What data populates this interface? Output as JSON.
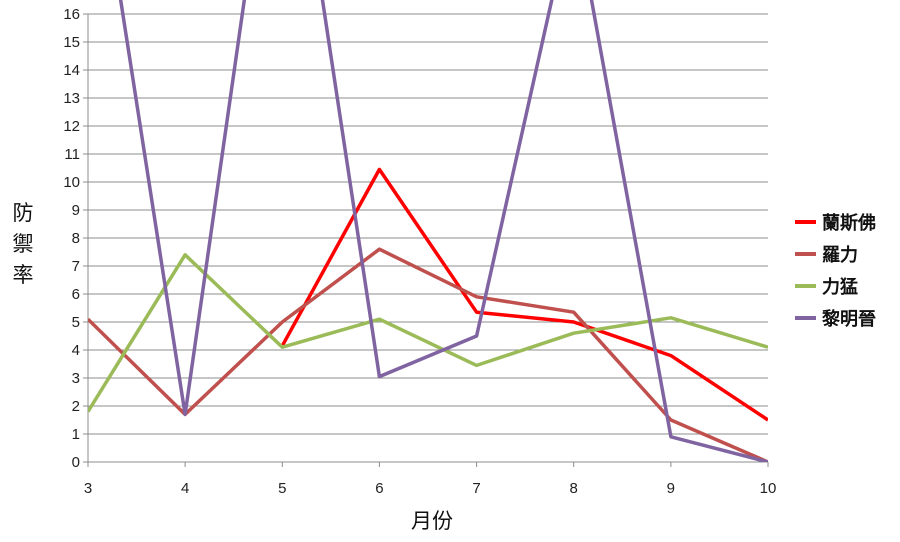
{
  "chart_data": {
    "type": "line",
    "xlabel": "月份",
    "ylabel": "防禦率",
    "x": [
      3,
      4,
      5,
      6,
      7,
      8,
      9,
      10
    ],
    "xlim": [
      3,
      10
    ],
    "ylim": [
      0,
      16
    ],
    "x_ticks": [
      "3",
      "4",
      "5",
      "6",
      "7",
      "8",
      "9",
      "10"
    ],
    "y_ticks": [
      "0",
      "1",
      "2",
      "3",
      "4",
      "5",
      "6",
      "7",
      "8",
      "9",
      "10",
      "11",
      "12",
      "13",
      "14",
      "15",
      "16"
    ],
    "grid": "horizontal",
    "legend_position": "right",
    "series": [
      {
        "name": "蘭斯佛",
        "color": "#ff0000",
        "values": [
          null,
          null,
          4.15,
          10.45,
          5.35,
          5.0,
          3.8,
          1.5
        ]
      },
      {
        "name": "羅力",
        "color": "#c0504d",
        "values": [
          5.1,
          1.7,
          5.0,
          7.6,
          5.9,
          5.35,
          1.5,
          0.0
        ]
      },
      {
        "name": "力猛",
        "color": "#9bbb59",
        "values": [
          1.8,
          7.4,
          4.1,
          5.1,
          3.45,
          4.6,
          5.15,
          4.1
        ]
      },
      {
        "name": "黎明晉",
        "color": "#8064a2",
        "values": [
          24.0,
          1.7,
          26.0,
          3.05,
          4.5,
          20.0,
          0.9,
          0.0
        ]
      }
    ]
  }
}
